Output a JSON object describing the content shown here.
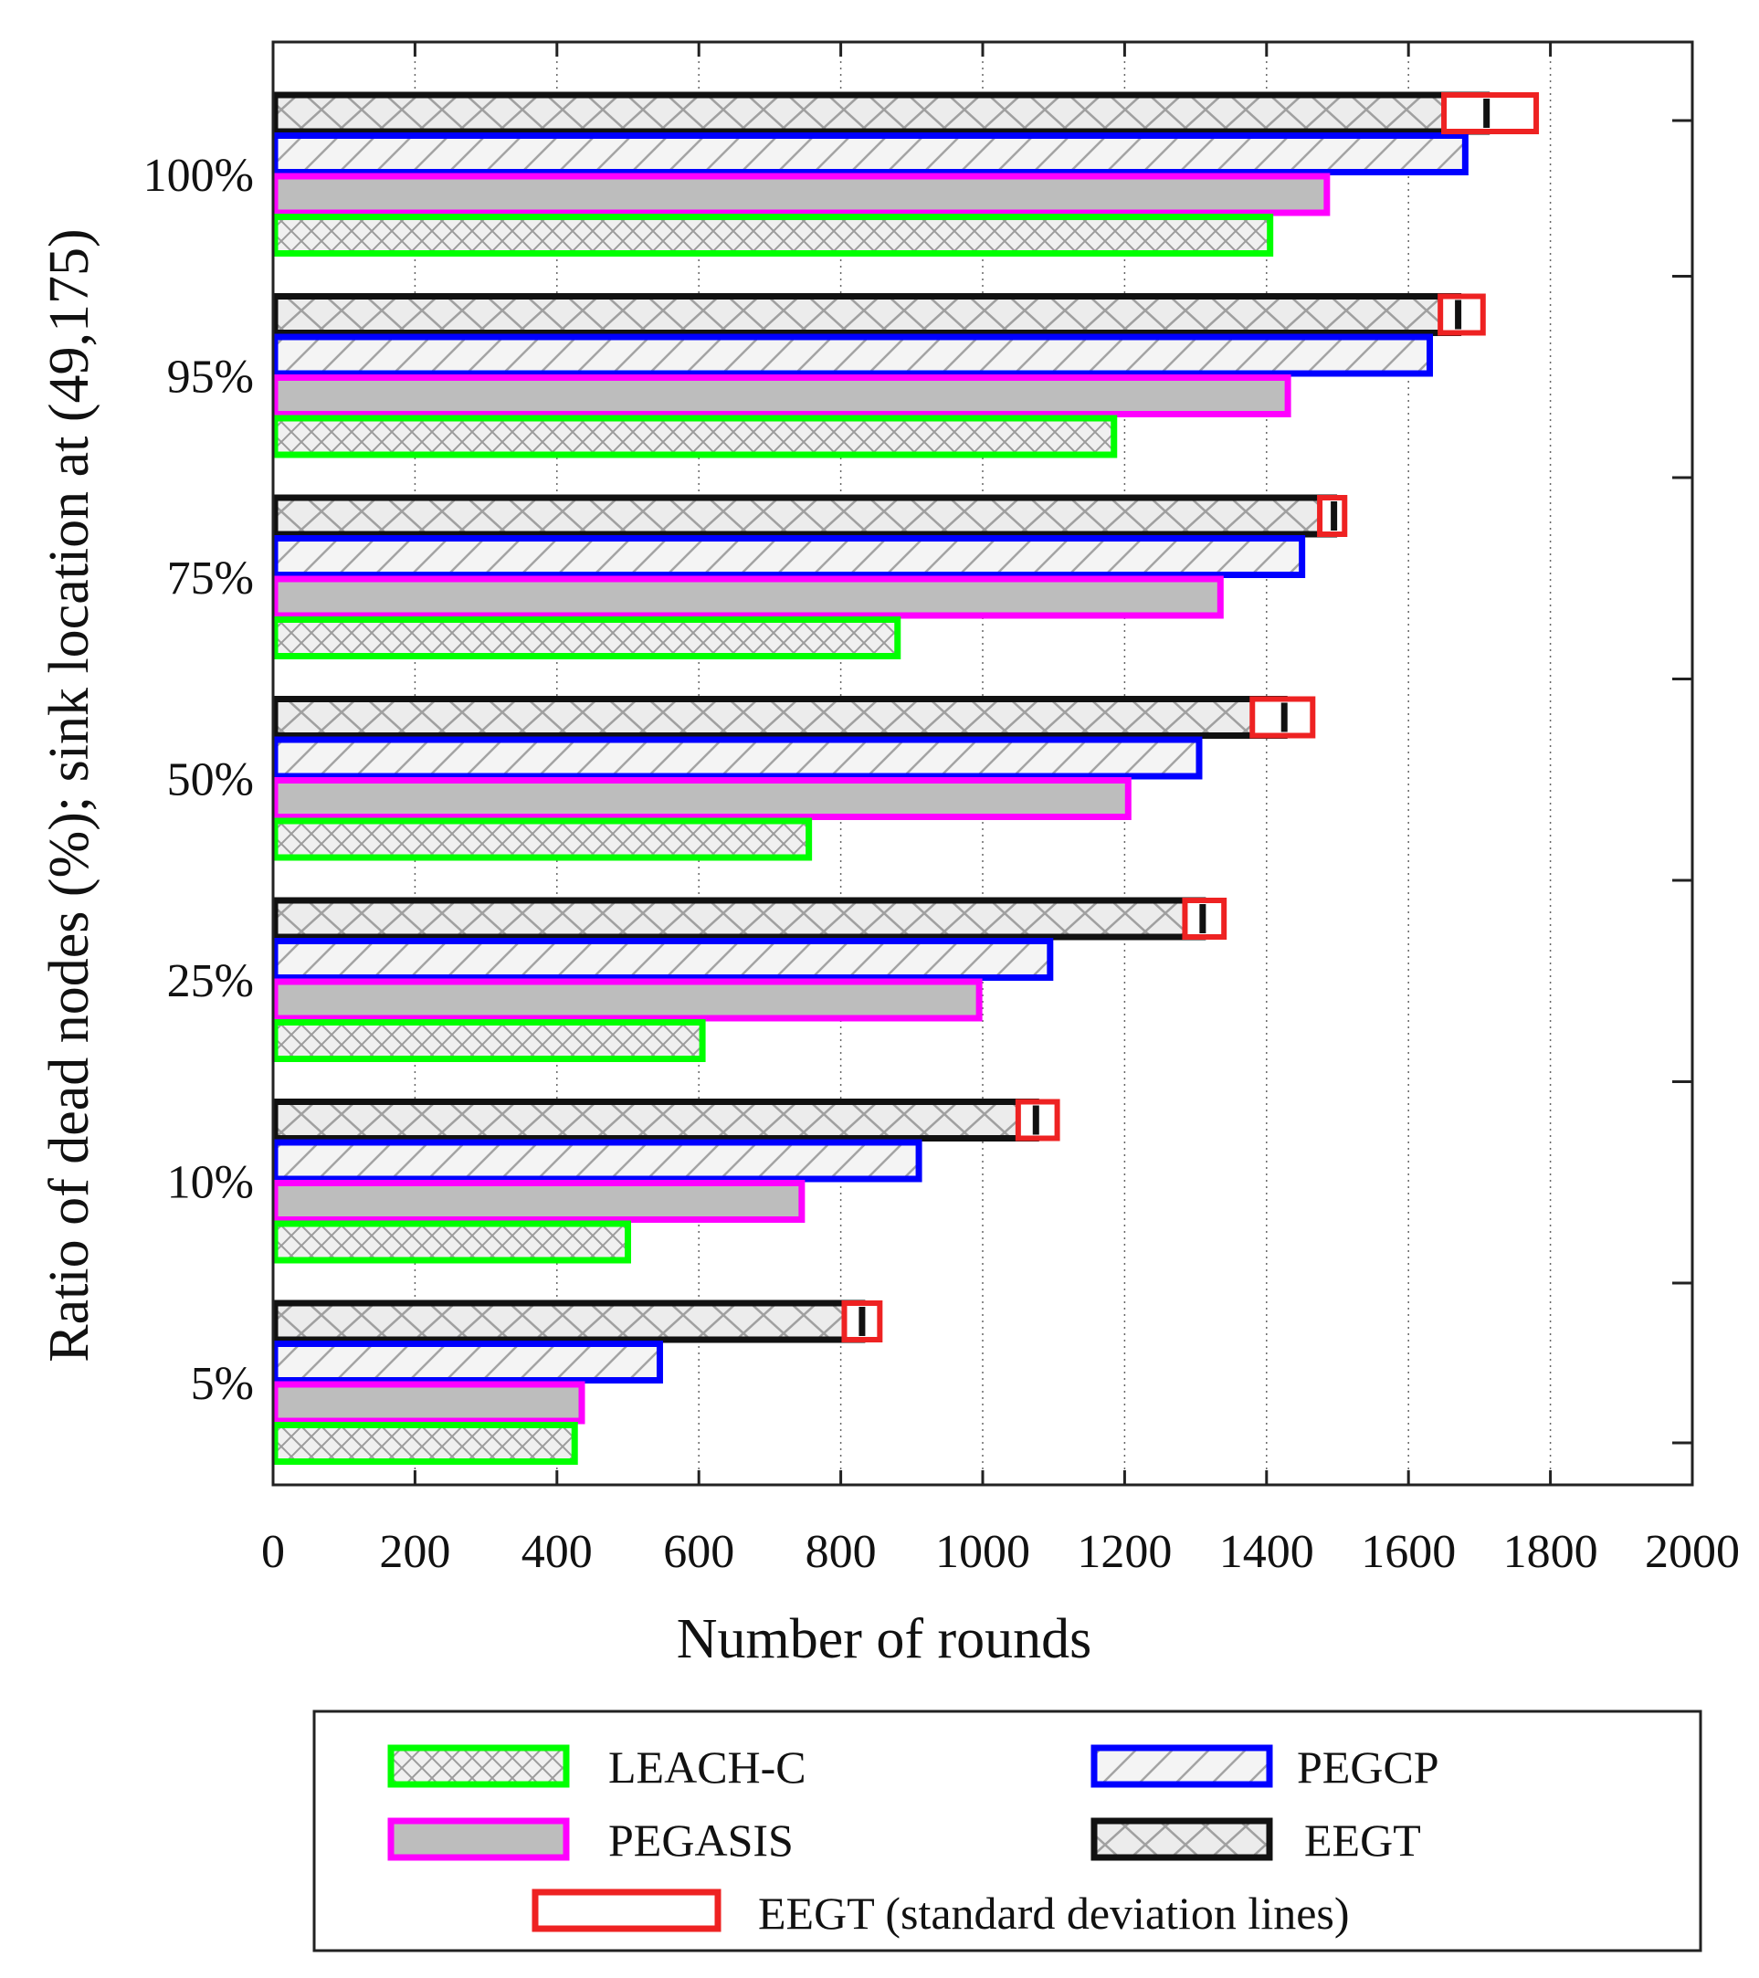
{
  "chart_data": {
    "type": "bar",
    "orientation": "horizontal",
    "title": "",
    "xlabel": "Number of rounds",
    "ylabel": "Ratio of dead nodes (%); sink location at (49,175)",
    "xlim": [
      0,
      2000
    ],
    "xticks": [
      0,
      200,
      400,
      600,
      800,
      1000,
      1200,
      1400,
      1600,
      1800,
      2000
    ],
    "xtick_labels": [
      "0",
      "200",
      "400",
      "600",
      "800",
      "1000",
      "1200",
      "1400",
      "1600",
      "1800",
      "2000"
    ],
    "grid": "vertical dotted",
    "categories": [
      "100%",
      "95%",
      "75%",
      "50%",
      "25%",
      "10%",
      "5%"
    ],
    "series": [
      {
        "name": "EEGT",
        "color": "#111111",
        "pattern": "cross",
        "values": [
          1710,
          1670,
          1495,
          1425,
          1310,
          1075,
          830
        ]
      },
      {
        "name": "PEGCP",
        "color": "#0000ff",
        "pattern": "diagonal",
        "values": [
          1680,
          1630,
          1450,
          1305,
          1095,
          910,
          545
        ]
      },
      {
        "name": "PEGASIS",
        "color": "#ff00ff",
        "pattern": "solid-gray",
        "values": [
          1485,
          1430,
          1335,
          1205,
          995,
          745,
          435
        ]
      },
      {
        "name": "LEACH-C",
        "color": "#00ff00",
        "pattern": "fine-cross",
        "values": [
          1405,
          1185,
          880,
          755,
          605,
          500,
          425
        ]
      }
    ],
    "error_boxes": {
      "name": "EEGT (standard deviation lines)",
      "color": "#ee2222",
      "low": [
        1650,
        1645,
        1475,
        1380,
        1285,
        1050,
        805
      ],
      "high": [
        1780,
        1705,
        1510,
        1465,
        1340,
        1105,
        855
      ]
    },
    "legend": {
      "placement": "bottom",
      "entries": [
        {
          "label": "LEACH-C",
          "color": "#00ff00",
          "pattern": "fine-cross"
        },
        {
          "label": "PEGCP",
          "color": "#0000ff",
          "pattern": "diagonal"
        },
        {
          "label": "PEGASIS",
          "color": "#ff00ff",
          "pattern": "solid-gray"
        },
        {
          "label": "EEGT",
          "color": "#111111",
          "pattern": "cross"
        },
        {
          "label": "EEGT (standard deviation lines)",
          "color": "#ee2222",
          "pattern": "none"
        }
      ]
    }
  }
}
